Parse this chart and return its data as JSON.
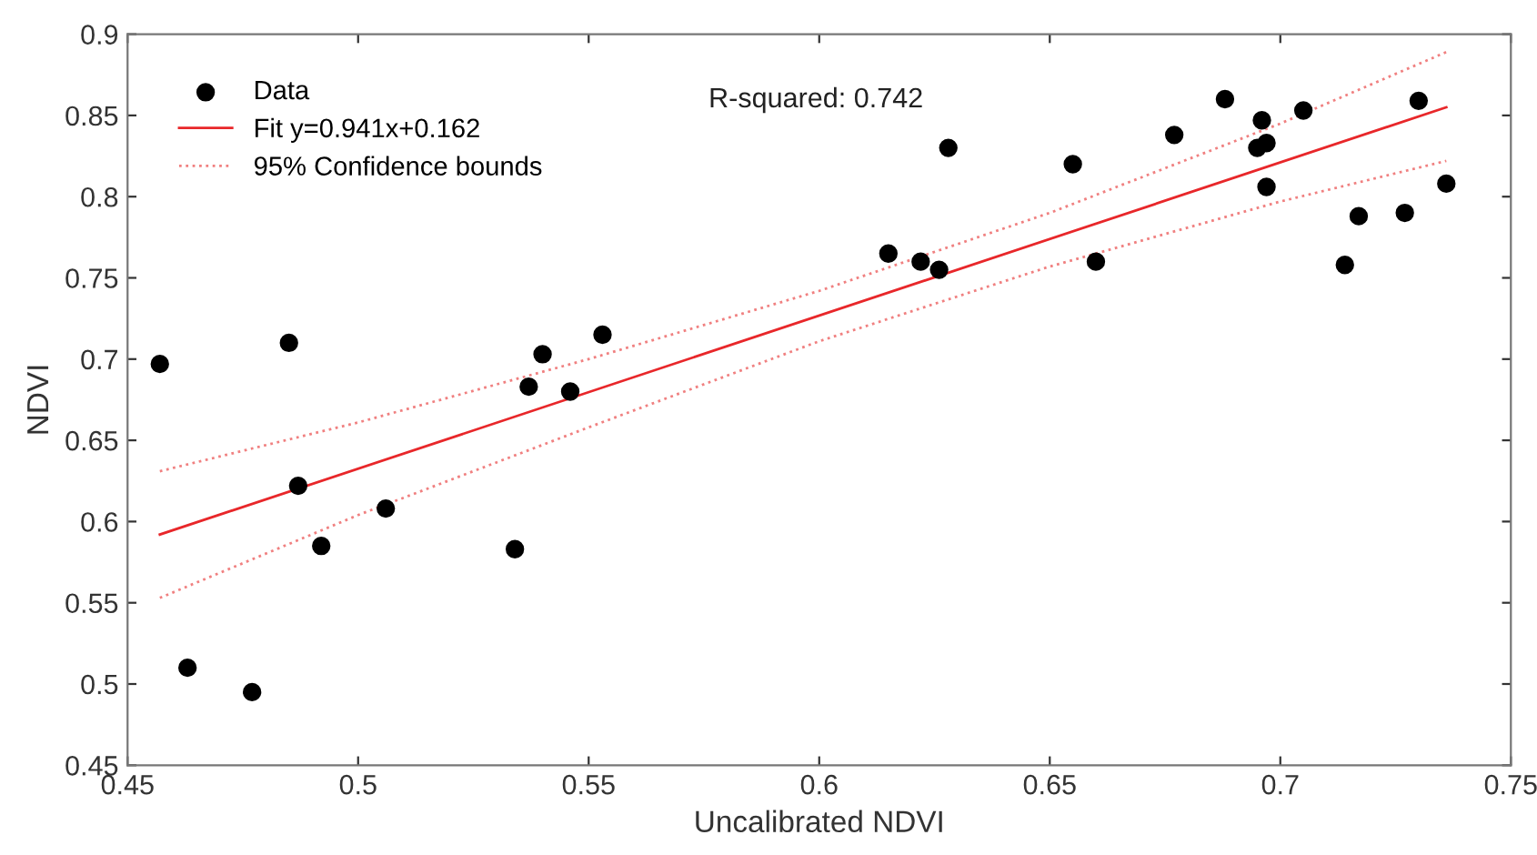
{
  "chart_data": {
    "type": "scatter",
    "xlabel": "Uncalibrated NDVI",
    "ylabel": "NDVI",
    "annotations": [
      "R-squared: 0.742"
    ],
    "xlim": [
      0.45,
      0.75
    ],
    "xticks": [
      0.45,
      0.5,
      0.55,
      0.6,
      0.65,
      0.7,
      0.75
    ],
    "ylim": [
      0.45,
      0.9
    ],
    "yticks": [
      0.45,
      0.5,
      0.55,
      0.6,
      0.65,
      0.7,
      0.75,
      0.8,
      0.85,
      0.9
    ],
    "grid": false,
    "legend": "top left",
    "series": [
      {
        "name": "Data",
        "color": "#000000",
        "marker": "circle",
        "x": [
          0.457,
          0.463,
          0.477,
          0.485,
          0.487,
          0.492,
          0.506,
          0.534,
          0.537,
          0.54,
          0.546,
          0.553,
          0.615,
          0.622,
          0.626,
          0.628,
          0.655,
          0.66,
          0.677,
          0.688,
          0.695,
          0.696,
          0.697,
          0.697,
          0.705,
          0.714,
          0.717,
          0.727,
          0.73,
          0.736
        ],
        "values": [
          0.697,
          0.51,
          0.495,
          0.71,
          0.622,
          0.585,
          0.608,
          0.583,
          0.683,
          0.703,
          0.68,
          0.715,
          0.765,
          0.76,
          0.755,
          0.83,
          0.82,
          0.76,
          0.838,
          0.86,
          0.83,
          0.847,
          0.833,
          0.806,
          0.853,
          0.758,
          0.788,
          0.79,
          0.859,
          0.808
        ]
      },
      {
        "name": "Fit y=0.941x+0.162",
        "type": "line",
        "color": "#e8272a",
        "line_style": "solid",
        "x": [
          0.457,
          0.736
        ],
        "values": [
          0.592,
          0.855
        ]
      },
      {
        "name": "95% Confidence bounds",
        "type": "line",
        "color": "#f08080",
        "line_style": "dotted",
        "x": [
          0.457,
          0.5,
          0.55,
          0.6,
          0.65,
          0.7,
          0.736
        ],
        "values": [
          0.631,
          0.661,
          0.7,
          0.742,
          0.79,
          0.845,
          0.889
        ]
      },
      {
        "type": "line",
        "color": "#f08080",
        "line_style": "dotted",
        "x": [
          0.457,
          0.5,
          0.55,
          0.6,
          0.65,
          0.7,
          0.736
        ],
        "values": [
          0.553,
          0.604,
          0.658,
          0.711,
          0.757,
          0.797,
          0.822
        ]
      }
    ]
  }
}
